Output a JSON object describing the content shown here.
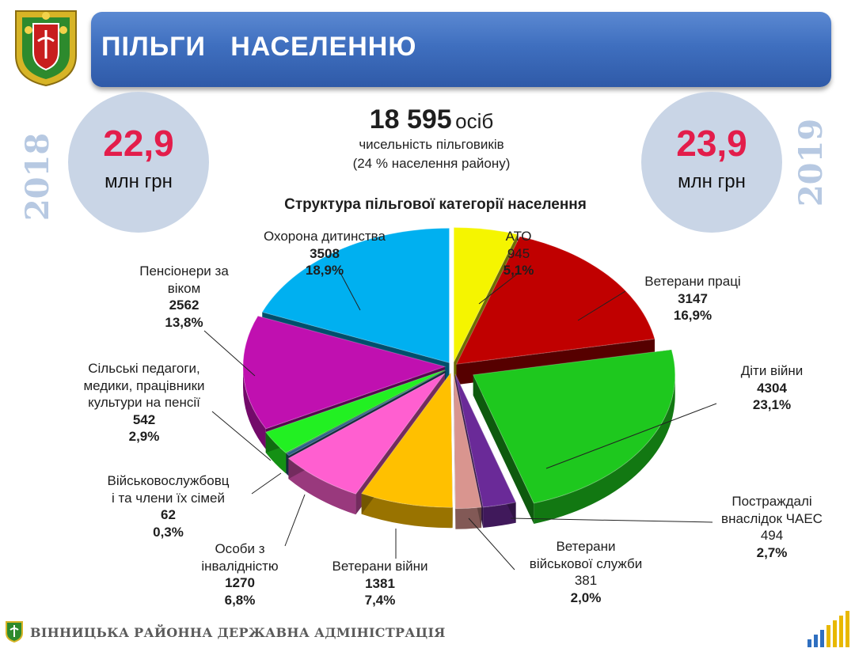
{
  "header": {
    "title": "ПІЛЬГИ   НАСЕЛЕННЮ"
  },
  "left_budget": {
    "year": "2018",
    "amount": "22,9",
    "unit": "млн грн"
  },
  "right_budget": {
    "year": "2019",
    "amount": "23,9",
    "unit": "млн грн"
  },
  "summary": {
    "count": "18 595",
    "count_unit": "осіб",
    "line1": "чисельність пільговиків",
    "line2": "(24 % населення району)"
  },
  "footer": {
    "text": "ВІННИЦЬКА РАЙОННА ДЕРЖАВНА АДМІНІСТРАЦІЯ"
  },
  "colors": {
    "banner": "#3f6fbf",
    "amount": "#e31d4b",
    "circle": "#c9d5e6",
    "year": "#b7c9e2"
  },
  "chart_data": {
    "type": "pie",
    "title": "Структура пільгової категорії населення",
    "slices": [
      {
        "name": "АТО",
        "label_lines": [
          "АТО"
        ],
        "value": 945,
        "value_text": "945",
        "percent": 5.1,
        "percent_text": "5,1%",
        "color": "#f5f500"
      },
      {
        "name": "Ветерани праці",
        "label_lines": [
          "Ветерани праці"
        ],
        "value": 3147,
        "value_text": "3147",
        "percent": 16.9,
        "percent_text": "16,9%",
        "color": "#c00000"
      },
      {
        "name": "Діти війни",
        "label_lines": [
          "Діти війни"
        ],
        "value": 4304,
        "value_text": "4304",
        "percent": 23.1,
        "percent_text": "23,1%",
        "color": "#1ec81e"
      },
      {
        "name": "Постраждалі внаслідок ЧАЕС",
        "label_lines": [
          "Постраждалі",
          "внаслідок ЧАЕС"
        ],
        "value": 494,
        "value_text": "494",
        "percent": 2.7,
        "percent_text": "2,7%",
        "color": "#6a2a98"
      },
      {
        "name": "Ветерани військової служби",
        "label_lines": [
          "Ветерани",
          "військової служби"
        ],
        "value": 381,
        "value_text": "381",
        "percent": 2.0,
        "percent_text": "2,0%",
        "color": "#d9958f"
      },
      {
        "name": "Ветерани війни",
        "label_lines": [
          "Ветерани війни"
        ],
        "value": 1381,
        "value_text": "1381",
        "percent": 7.4,
        "percent_text": "7,4%",
        "color": "#ffc000"
      },
      {
        "name": "Особи з інвалідністю",
        "label_lines": [
          "Особи з",
          "інвалідністю"
        ],
        "value": 1270,
        "value_text": "1270",
        "percent": 6.8,
        "percent_text": "6,8%",
        "color": "#ff5fd0"
      },
      {
        "name": "Військовослужбовці та члени їх сімей",
        "label_lines": [
          "Військовослужбовц",
          "і та члени їх сімей"
        ],
        "value": 62,
        "value_text": "62",
        "percent": 0.3,
        "percent_text": "0,3%",
        "color": "#2e5f8a"
      },
      {
        "name": "Сільські педагоги, медики, працівники культури на пенсії",
        "label_lines": [
          "Сільські педагоги,",
          "медики, працівники",
          "культури на пенсії"
        ],
        "value": 542,
        "value_text": "542",
        "percent": 2.9,
        "percent_text": "2,9%",
        "color": "#22f022"
      },
      {
        "name": "Пенсіонери за віком",
        "label_lines": [
          "Пенсіонери за",
          "віком"
        ],
        "value": 2562,
        "value_text": "2562",
        "percent": 13.8,
        "percent_text": "13,8%",
        "color": "#c010b0"
      },
      {
        "name": "Охорона дитинства",
        "label_lines": [
          "Охорона дитинства"
        ],
        "value": 3508,
        "value_text": "3508",
        "percent": 18.9,
        "percent_text": "18,9%",
        "color": "#00b0f0"
      }
    ]
  }
}
